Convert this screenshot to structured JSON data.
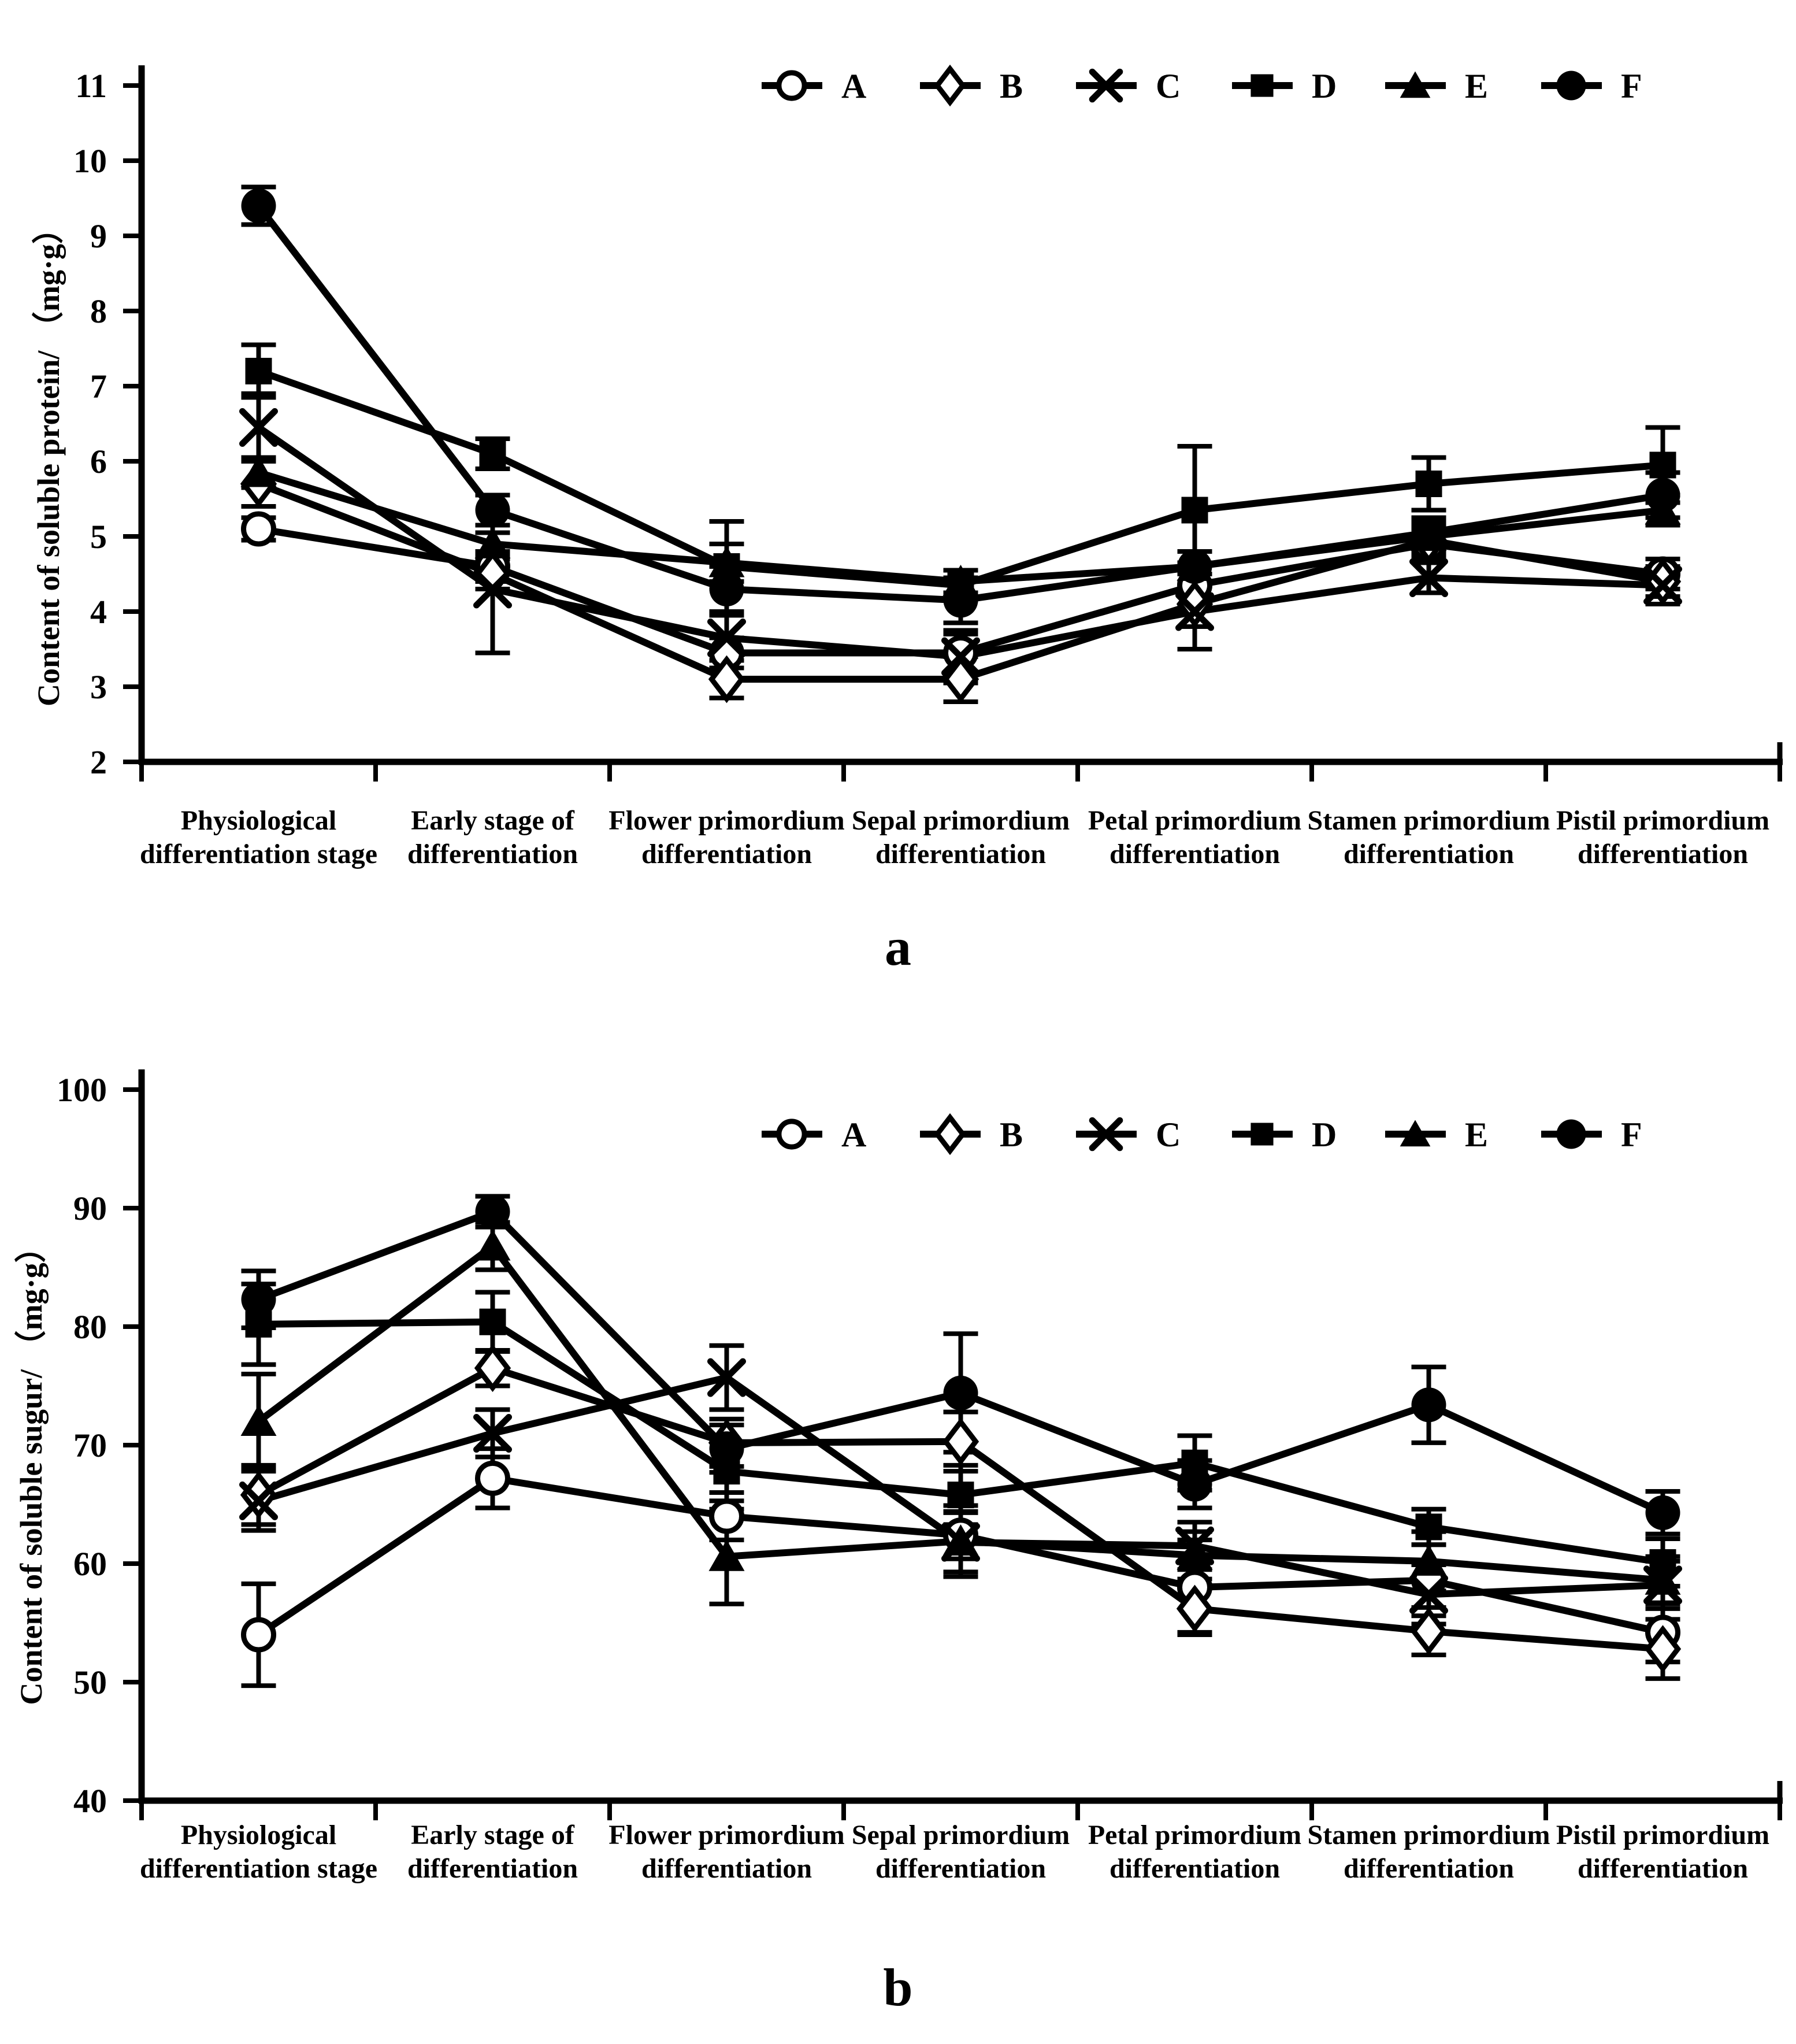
{
  "figure": {
    "caption_a": "a",
    "caption_b": "b",
    "background_color": "#ffffff",
    "line_color": "#000000"
  },
  "legend": {
    "position": "top",
    "entries": [
      {
        "label": "A",
        "marker": "circle-open-icon"
      },
      {
        "label": "B",
        "marker": "diamond-open-icon"
      },
      {
        "label": "C",
        "marker": "x-icon"
      },
      {
        "label": "D",
        "marker": "square-filled-icon"
      },
      {
        "label": "E",
        "marker": "triangle-filled-icon"
      },
      {
        "label": "F",
        "marker": "circle-filled-icon"
      }
    ]
  },
  "chart_data": [
    {
      "id": "a",
      "type": "line",
      "title": "",
      "xlabel": "",
      "ylabel": "Content of soluble protein/ （mg·g）",
      "ylim": [
        2,
        11
      ],
      "yticks": [
        11,
        10,
        9,
        8,
        7,
        6,
        5,
        4,
        3,
        2
      ],
      "grid": false,
      "legend_position": "top",
      "categories": [
        [
          "Physiological",
          "differentiation stage"
        ],
        [
          "Early stage of",
          "differentiation"
        ],
        [
          "Flower primordium",
          "differentiation"
        ],
        [
          "Sepal primordium",
          "differentiation"
        ],
        [
          "Petal primordium",
          "differentiation"
        ],
        [
          "Stamen primordium",
          "differentiation"
        ],
        [
          "Pistil primordium",
          "differentiation"
        ]
      ],
      "series": [
        {
          "name": "A",
          "marker": "circle-open",
          "values": [
            5.1,
            4.6,
            3.45,
            3.45,
            4.35,
            4.9,
            4.5
          ],
          "errors": [
            0.15,
            0.2,
            0.2,
            0.25,
            0.3,
            0.2,
            0.2
          ]
        },
        {
          "name": "B",
          "marker": "diamond-open",
          "values": [
            5.7,
            4.5,
            3.1,
            3.1,
            4.1,
            4.95,
            4.4
          ],
          "errors": [
            0.3,
            0.2,
            0.25,
            0.3,
            0.3,
            0.2,
            0.2
          ]
        },
        {
          "name": "C",
          "marker": "x",
          "values": [
            6.45,
            4.3,
            3.65,
            3.4,
            4.0,
            4.45,
            4.35
          ],
          "errors": [
            0.45,
            0.85,
            0.3,
            0.35,
            0.5,
            0.2,
            0.25
          ]
        },
        {
          "name": "D",
          "marker": "square-filled",
          "values": [
            7.2,
            6.1,
            4.6,
            4.35,
            5.35,
            5.7,
            5.95
          ],
          "errors": [
            0.35,
            0.2,
            0.6,
            0.2,
            0.85,
            0.35,
            0.5
          ]
        },
        {
          "name": "E",
          "marker": "triangle-filled",
          "values": [
            5.85,
            4.9,
            4.65,
            4.4,
            4.6,
            5.0,
            5.35
          ],
          "errors": [
            0.2,
            0.15,
            0.25,
            0.15,
            0.2,
            0.2,
            0.2
          ]
        },
        {
          "name": "F",
          "marker": "circle-filled",
          "values": [
            9.4,
            5.35,
            4.3,
            4.15,
            4.6,
            5.05,
            5.55
          ],
          "errors": [
            0.25,
            0.2,
            0.3,
            0.3,
            0.2,
            0.2,
            0.3
          ]
        }
      ]
    },
    {
      "id": "b",
      "type": "line",
      "title": "",
      "xlabel": "",
      "ylabel": "Content of soluble sugur/ （mg·g）",
      "ylim": [
        40,
        100
      ],
      "yticks": [
        100,
        90,
        80,
        70,
        60,
        50,
        40
      ],
      "grid": false,
      "legend_position": "top",
      "categories": [
        [
          "Physiological",
          "differentiation stage"
        ],
        [
          "Early stage of",
          "differentiation"
        ],
        [
          "Flower primordium",
          "differentiation"
        ],
        [
          "Sepal primordium",
          "differentiation"
        ],
        [
          "Petal primordium",
          "differentiation"
        ],
        [
          "Stamen primordium",
          "differentiation"
        ],
        [
          "Pistil primordium",
          "differentiation"
        ]
      ],
      "series": [
        {
          "name": "A",
          "marker": "circle-open",
          "values": [
            54.0,
            67.2,
            64.0,
            62.4,
            58.0,
            58.6,
            54.2
          ],
          "errors": [
            4.3,
            2.5,
            2.0,
            2.0,
            4.0,
            3.0,
            2.5
          ]
        },
        {
          "name": "B",
          "marker": "diamond-open",
          "values": [
            65.8,
            76.5,
            70.2,
            70.3,
            56.2,
            54.3,
            52.8
          ],
          "errors": [
            2.5,
            1.5,
            2.0,
            2.5,
            2.0,
            2.0,
            2.5
          ]
        },
        {
          "name": "C",
          "marker": "x",
          "values": [
            65.3,
            71.0,
            75.7,
            61.8,
            61.5,
            57.4,
            58.2
          ],
          "errors": [
            2.5,
            2.0,
            2.7,
            2.5,
            2.0,
            2.5,
            2.0
          ]
        },
        {
          "name": "D",
          "marker": "square-filled",
          "values": [
            80.2,
            80.4,
            67.8,
            65.8,
            68.5,
            63.1,
            60.1
          ],
          "errors": [
            3.4,
            2.5,
            2.5,
            2.5,
            2.3,
            1.5,
            2.0
          ]
        },
        {
          "name": "E",
          "marker": "triangle-filled",
          "values": [
            72.0,
            86.8,
            60.6,
            61.9,
            60.7,
            60.2,
            58.6
          ],
          "errors": [
            4.0,
            2.0,
            4.0,
            3.0,
            2.0,
            2.5,
            2.0
          ]
        },
        {
          "name": "F",
          "marker": "circle-filled",
          "values": [
            82.3,
            89.7,
            69.7,
            74.4,
            66.7,
            73.4,
            64.3
          ],
          "errors": [
            2.4,
            1.3,
            2.0,
            5.0,
            2.0,
            3.2,
            1.8
          ]
        }
      ]
    }
  ]
}
